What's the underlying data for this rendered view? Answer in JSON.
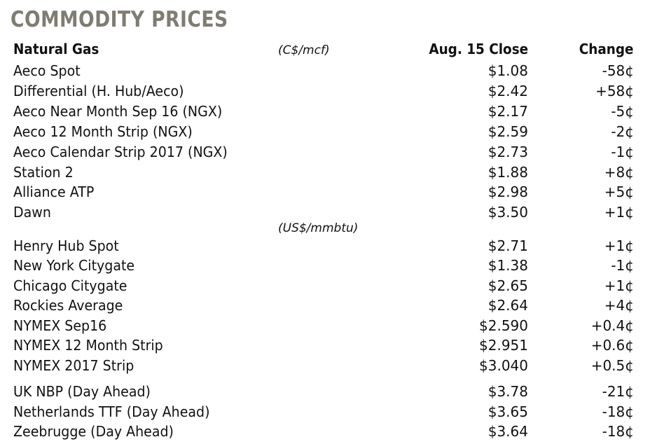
{
  "title": "COMMODITY PRICES",
  "headers": {
    "name": "Natural Gas",
    "unit": "(C$/mcf)",
    "close": "Aug. 15 Close",
    "change": "Change"
  },
  "unit_us": "(US$/mmbtu)",
  "rows": [
    {
      "name": "Aeco Spot",
      "close": "$1.08",
      "change": "-58¢"
    },
    {
      "name": "Differential (H. Hub/Aeco)",
      "close": "$2.42",
      "change": "+58¢"
    },
    {
      "name": "Aeco Near Month Sep 16 (NGX)",
      "close": "$2.17",
      "change": "-5¢"
    },
    {
      "name": "Aeco 12 Month Strip (NGX)",
      "close": "$2.59",
      "change": "-2¢"
    },
    {
      "name": "Aeco Calendar Strip 2017 (NGX)",
      "close": "$2.73",
      "change": "-1¢"
    },
    {
      "name": "Station 2",
      "close": "$1.88",
      "change": "+8¢"
    },
    {
      "name": "Alliance ATP",
      "close": "$2.98",
      "change": "+5¢"
    },
    {
      "name": "Dawn",
      "close": "$3.50",
      "change": "+1¢"
    },
    {
      "name": "Henry Hub Spot",
      "close": "$2.71",
      "change": "+1¢"
    },
    {
      "name": "New York Citygate",
      "close": "$1.38",
      "change": "-1¢"
    },
    {
      "name": "Chicago Citygate",
      "close": "$2.65",
      "change": "+1¢"
    },
    {
      "name": "Rockies Average",
      "close": "$2.64",
      "change": "+4¢"
    },
    {
      "name": "NYMEX  Sep16",
      "close": "$2.590",
      "change": "+0.4¢"
    },
    {
      "name": "NYMEX 12 Month Strip",
      "close": "$2.951",
      "change": "+0.6¢"
    },
    {
      "name": "NYMEX 2017 Strip",
      "close": "$3.040",
      "change": "+0.5¢"
    },
    {
      "name": "UK NBP (Day Ahead)",
      "close": "$3.78",
      "change": "-21¢"
    },
    {
      "name": "Netherlands TTF (Day Ahead)",
      "close": "$3.65",
      "change": "-18¢"
    },
    {
      "name": "Zeebrugge (Day Ahead)",
      "close": "$3.64",
      "change": "-18¢"
    }
  ]
}
